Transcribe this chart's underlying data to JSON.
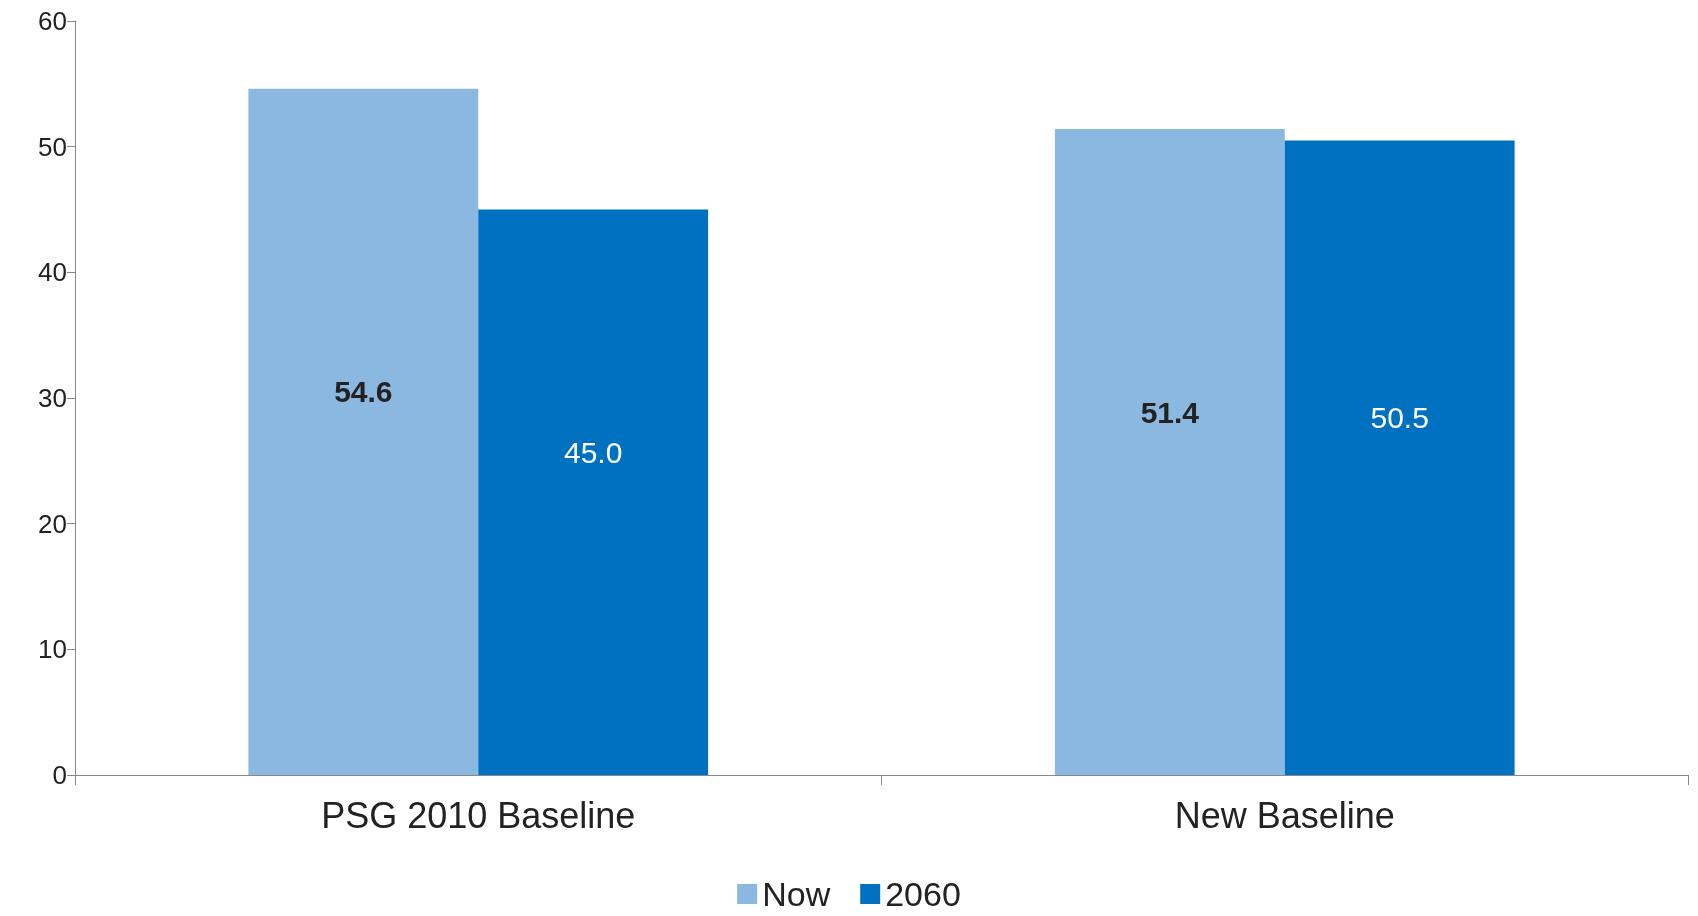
{
  "chart_data": {
    "type": "bar",
    "categories": [
      "PSG 2010 Baseline",
      "New Baseline"
    ],
    "series": [
      {
        "name": "Now",
        "color": "#8ab8e0",
        "values": [
          54.6,
          51.4
        ],
        "value_labels": [
          "54.6",
          "51.4"
        ]
      },
      {
        "name": "2060",
        "color": "#0070c0",
        "values": [
          45.0,
          50.5
        ],
        "value_labels": [
          "45.0",
          "50.5"
        ]
      }
    ],
    "ylim": [
      0,
      60
    ],
    "yticks": [
      0,
      10,
      20,
      30,
      40,
      50,
      60
    ],
    "grid": false,
    "legend": "bottom"
  }
}
